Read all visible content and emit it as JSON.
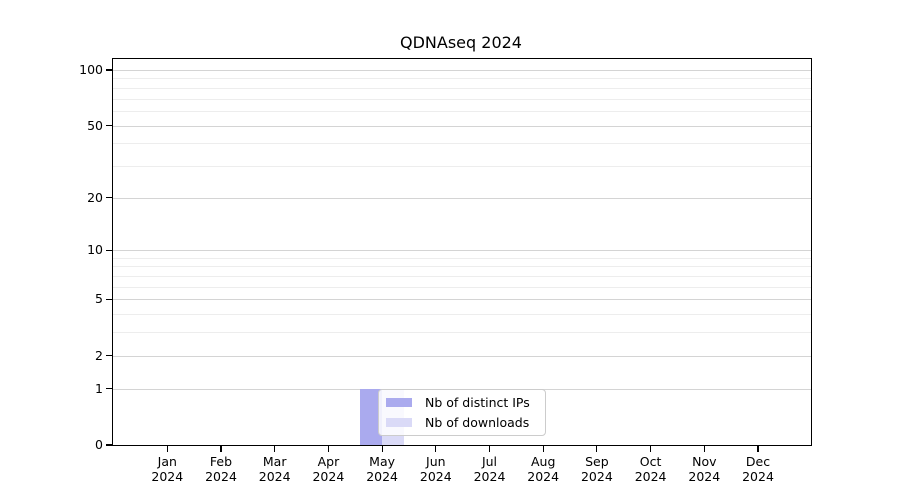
{
  "chart_data": {
    "type": "bar",
    "title": "QDNAseq 2024",
    "categories": [
      {
        "month": "Jan",
        "year": "2024"
      },
      {
        "month": "Feb",
        "year": "2024"
      },
      {
        "month": "Mar",
        "year": "2024"
      },
      {
        "month": "Apr",
        "year": "2024"
      },
      {
        "month": "May",
        "year": "2024"
      },
      {
        "month": "Jun",
        "year": "2024"
      },
      {
        "month": "Jul",
        "year": "2024"
      },
      {
        "month": "Aug",
        "year": "2024"
      },
      {
        "month": "Sep",
        "year": "2024"
      },
      {
        "month": "Oct",
        "year": "2024"
      },
      {
        "month": "Nov",
        "year": "2024"
      },
      {
        "month": "Dec",
        "year": "2024"
      }
    ],
    "series": [
      {
        "name": "Nb of distinct IPs",
        "color": "#aaaaee",
        "values": [
          0,
          0,
          0,
          0,
          1,
          0,
          0,
          0,
          0,
          0,
          0,
          0
        ]
      },
      {
        "name": "Nb of downloads",
        "color": "#dadaf7",
        "values": [
          0,
          0,
          0,
          0,
          1,
          0,
          0,
          0,
          0,
          0,
          0,
          0
        ]
      }
    ],
    "y_axis": {
      "scale": "log1p",
      "tick_values": [
        0,
        1,
        2,
        5,
        10,
        20,
        50,
        100
      ],
      "minor_gridline_values": [
        3,
        4,
        6,
        7,
        8,
        9,
        30,
        40,
        60,
        70,
        80,
        90
      ],
      "range_max": 112
    },
    "legend": {
      "location": "inside plot, lower center-left"
    },
    "grid": {
      "horizontal_major": true,
      "horizontal_minor": true,
      "vertical": false
    },
    "colors": {
      "axis": "#000000",
      "major_grid": "#d4d4d4",
      "minor_grid": "#ededed",
      "legend_border": "#cccccc",
      "text": "#000000"
    }
  }
}
